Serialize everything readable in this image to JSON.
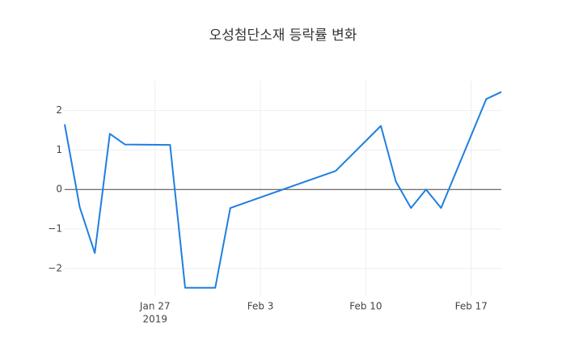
{
  "chart_data": {
    "type": "line",
    "title": "오성첨단소재 등락률 변화",
    "x": [
      "2019-01-21",
      "2019-01-22",
      "2019-01-23",
      "2019-01-24",
      "2019-01-25",
      "2019-01-28",
      "2019-01-29",
      "2019-01-30",
      "2019-01-31",
      "2019-02-01",
      "2019-02-08",
      "2019-02-11",
      "2019-02-12",
      "2019-02-13",
      "2019-02-14",
      "2019-02-15",
      "2019-02-18",
      "2019-02-19"
    ],
    "values": [
      1.65,
      -0.45,
      -1.61,
      1.41,
      1.14,
      1.13,
      -2.49,
      -2.49,
      -2.49,
      -0.47,
      0.47,
      1.61,
      0.2,
      -0.47,
      0,
      -0.47,
      2.29,
      2.47
    ],
    "color": "#1f7fe0",
    "xlim": [
      "2019-01-21",
      "2019-02-19"
    ],
    "xticks": [
      {
        "value": "2019-01-27",
        "label": "Jan 27"
      },
      {
        "value": "2019-02-03",
        "label": "Feb 3"
      },
      {
        "value": "2019-02-10",
        "label": "Feb 10"
      },
      {
        "value": "2019-02-17",
        "label": "Feb 17"
      }
    ],
    "xtick_year": "2019",
    "ylim": [
      -2.7,
      2.75
    ],
    "yticks": [
      {
        "value": -2,
        "label": "−2"
      },
      {
        "value": -1,
        "label": "−1"
      },
      0,
      1,
      2
    ],
    "grid": true
  }
}
